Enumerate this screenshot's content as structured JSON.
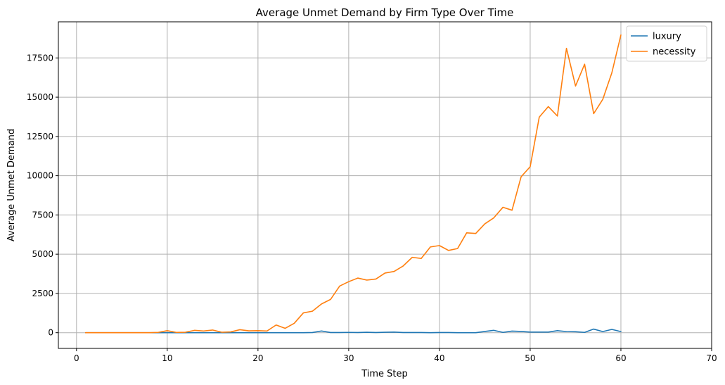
{
  "chart_data": {
    "type": "line",
    "title": "Average Unmet Demand by Firm Type Over Time",
    "xlabel": "Time Step",
    "ylabel": "Average Unmet Demand",
    "xlim": [
      -2,
      70
    ],
    "ylim": [
      -1000,
      19800
    ],
    "xticks": [
      0,
      10,
      20,
      30,
      40,
      50,
      60,
      70
    ],
    "yticks": [
      0,
      2500,
      5000,
      7500,
      10000,
      12500,
      15000,
      17500
    ],
    "grid": true,
    "legend_position": "top-right",
    "x": [
      1,
      2,
      3,
      4,
      5,
      6,
      7,
      8,
      9,
      10,
      11,
      12,
      13,
      14,
      15,
      16,
      17,
      18,
      19,
      20,
      21,
      22,
      23,
      24,
      25,
      26,
      27,
      28,
      29,
      30,
      31,
      32,
      33,
      34,
      35,
      36,
      37,
      38,
      39,
      40,
      41,
      42,
      43,
      44,
      45,
      46,
      47,
      48,
      49,
      50,
      51,
      52,
      53,
      54,
      55,
      56,
      57,
      58,
      59,
      60
    ],
    "series": [
      {
        "name": "luxury",
        "color": "#1f77b4",
        "values": [
          0,
          0,
          0,
          0,
          0,
          0,
          0,
          0,
          0,
          0,
          0,
          0,
          0,
          0,
          0,
          0,
          0,
          0,
          0,
          0,
          0,
          0,
          0,
          0,
          0,
          10,
          110,
          10,
          10,
          20,
          10,
          30,
          10,
          30,
          40,
          10,
          10,
          10,
          0,
          10,
          10,
          0,
          0,
          0,
          80,
          150,
          20,
          100,
          80,
          40,
          40,
          40,
          130,
          70,
          60,
          20,
          230,
          70,
          210,
          70
        ]
      },
      {
        "name": "necessity",
        "color": "#ff7f0e",
        "values": [
          0,
          0,
          0,
          0,
          0,
          0,
          0,
          0,
          20,
          130,
          20,
          30,
          150,
          110,
          170,
          30,
          50,
          190,
          120,
          130,
          110,
          490,
          280,
          600,
          1260,
          1370,
          1830,
          2120,
          2970,
          3250,
          3480,
          3350,
          3420,
          3800,
          3900,
          4250,
          4800,
          4730,
          5460,
          5550,
          5240,
          5360,
          6360,
          6320,
          6930,
          7320,
          7990,
          7800,
          9930,
          10570,
          13730,
          14400,
          13800,
          18110,
          15710,
          17100,
          13950,
          14860,
          16550,
          18960
        ]
      }
    ]
  }
}
